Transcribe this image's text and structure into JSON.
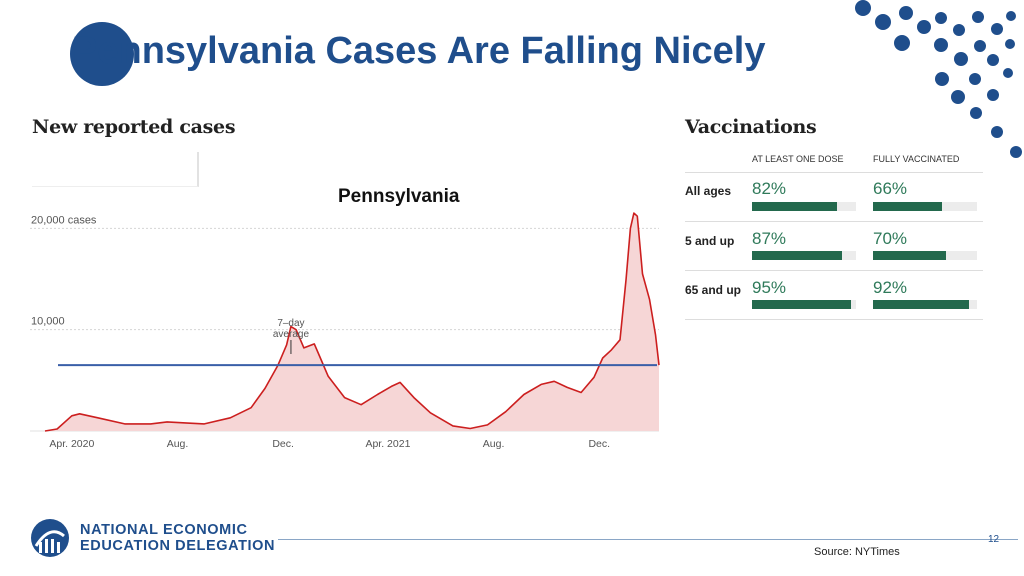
{
  "slide": {
    "title": "Pennsylvania Cases Are Falling Nicely",
    "page_number": "12",
    "source": "Source: NYTimes"
  },
  "logo": {
    "line1": "NATIONAL ECONOMIC",
    "line2": "EDUCATION DELEGATION"
  },
  "colors": {
    "brand_blue": "#1f4e8c",
    "case_line": "#cc1f1f",
    "case_fill": "#f6d6d6",
    "reference_line": "#3a5fa8",
    "vax_bar": "#23694d",
    "vax_text": "#2f7a5a"
  },
  "chart_data": [
    {
      "type": "area",
      "title": "New reported cases",
      "subtitle": "Pennsylvania",
      "ylabel_top": "20,000 cases",
      "yticks": [
        {
          "value": 20000,
          "label": "20,000 cases"
        },
        {
          "value": 10000,
          "label": "10,000"
        }
      ],
      "xticks": [
        {
          "date": "2020-04-01",
          "label": "Apr. 2020"
        },
        {
          "date": "2020-08-01",
          "label": "Aug."
        },
        {
          "date": "2020-12-01",
          "label": "Dec."
        },
        {
          "date": "2021-04-01",
          "label": "Apr. 2021"
        },
        {
          "date": "2021-08-01",
          "label": "Aug."
        },
        {
          "date": "2021-12-01",
          "label": "Dec."
        }
      ],
      "annotation": {
        "date": "2020-12-10",
        "line1": "7–day",
        "line2": "average"
      },
      "reference_value": 6500,
      "ylim": [
        0,
        22500
      ],
      "grid": true,
      "series": [
        {
          "values": [
            {
              "date": "2020-03-01",
              "value": 0
            },
            {
              "date": "2020-03-15",
              "value": 200
            },
            {
              "date": "2020-04-01",
              "value": 1500
            },
            {
              "date": "2020-04-10",
              "value": 1700
            },
            {
              "date": "2020-05-01",
              "value": 1300
            },
            {
              "date": "2020-06-01",
              "value": 700
            },
            {
              "date": "2020-07-01",
              "value": 700
            },
            {
              "date": "2020-07-20",
              "value": 900
            },
            {
              "date": "2020-08-10",
              "value": 800
            },
            {
              "date": "2020-09-01",
              "value": 700
            },
            {
              "date": "2020-10-01",
              "value": 1300
            },
            {
              "date": "2020-10-25",
              "value": 2300
            },
            {
              "date": "2020-11-10",
              "value": 4200
            },
            {
              "date": "2020-11-25",
              "value": 6500
            },
            {
              "date": "2020-12-05",
              "value": 8500
            },
            {
              "date": "2020-12-10",
              "value": 10300
            },
            {
              "date": "2020-12-16",
              "value": 10000
            },
            {
              "date": "2020-12-25",
              "value": 8200
            },
            {
              "date": "2021-01-06",
              "value": 8600
            },
            {
              "date": "2021-01-12",
              "value": 7400
            },
            {
              "date": "2021-01-22",
              "value": 5400
            },
            {
              "date": "2021-02-10",
              "value": 3300
            },
            {
              "date": "2021-03-01",
              "value": 2600
            },
            {
              "date": "2021-03-20",
              "value": 3600
            },
            {
              "date": "2021-04-05",
              "value": 4400
            },
            {
              "date": "2021-04-15",
              "value": 4800
            },
            {
              "date": "2021-05-01",
              "value": 3300
            },
            {
              "date": "2021-05-20",
              "value": 1800
            },
            {
              "date": "2021-06-15",
              "value": 500
            },
            {
              "date": "2021-07-05",
              "value": 250
            },
            {
              "date": "2021-07-25",
              "value": 600
            },
            {
              "date": "2021-08-15",
              "value": 1900
            },
            {
              "date": "2021-09-05",
              "value": 3600
            },
            {
              "date": "2021-09-25",
              "value": 4600
            },
            {
              "date": "2021-10-10",
              "value": 4900
            },
            {
              "date": "2021-10-25",
              "value": 4300
            },
            {
              "date": "2021-11-10",
              "value": 3800
            },
            {
              "date": "2021-11-25",
              "value": 5300
            },
            {
              "date": "2021-12-05",
              "value": 7200
            },
            {
              "date": "2021-12-15",
              "value": 8000
            },
            {
              "date": "2021-12-25",
              "value": 9000
            },
            {
              "date": "2022-01-01",
              "value": 15000
            },
            {
              "date": "2022-01-06",
              "value": 20000
            },
            {
              "date": "2022-01-10",
              "value": 21500
            },
            {
              "date": "2022-01-14",
              "value": 21200
            },
            {
              "date": "2022-01-20",
              "value": 15500
            },
            {
              "date": "2022-01-28",
              "value": 13000
            },
            {
              "date": "2022-02-04",
              "value": 9500
            },
            {
              "date": "2022-02-08",
              "value": 6500
            }
          ]
        }
      ]
    },
    {
      "type": "table",
      "title": "Vaccinations",
      "columns": [
        "AT LEAST ONE DOSE",
        "FULLY VACCINATED"
      ],
      "rows": [
        {
          "label": "All ages",
          "at_least_one_dose": "82%",
          "fully_vaccinated": "66%",
          "one_dose_fraction": 0.82,
          "fully_fraction": 0.66
        },
        {
          "label": "5 and up",
          "at_least_one_dose": "87%",
          "fully_vaccinated": "70%",
          "one_dose_fraction": 0.87,
          "fully_fraction": 0.7
        },
        {
          "label": "65 and up",
          "at_least_one_dose": "95%",
          "fully_vaccinated": "92%",
          "one_dose_fraction": 0.95,
          "fully_fraction": 0.92
        }
      ]
    }
  ]
}
